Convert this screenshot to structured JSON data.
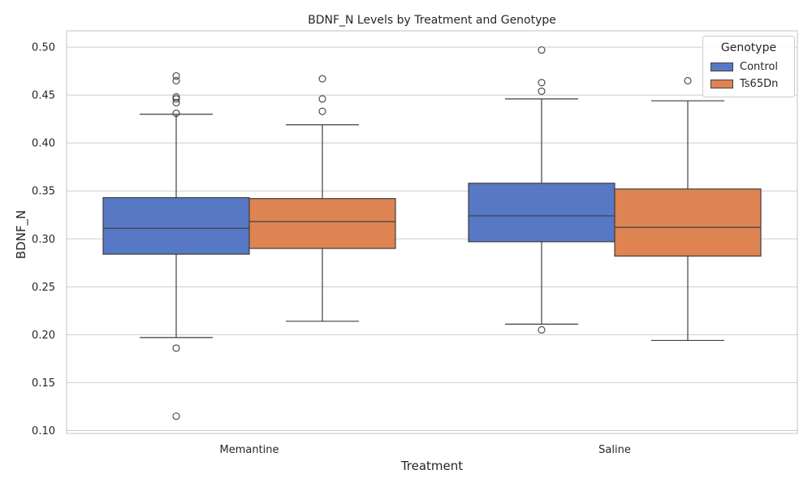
{
  "chart_data": {
    "type": "box",
    "title": "BDNF_N Levels by Treatment and Genotype",
    "xlabel": "Treatment",
    "ylabel": "BDNF_N",
    "categories": [
      "Memantine",
      "Saline"
    ],
    "ylim": [
      0.097,
      0.517
    ],
    "yticks": [
      "0.10",
      "0.15",
      "0.20",
      "0.25",
      "0.30",
      "0.35",
      "0.40",
      "0.45",
      "0.50"
    ],
    "grid": true,
    "legend": {
      "title": "Genotype",
      "placement": "top-right"
    },
    "series": [
      {
        "name": "Control",
        "color": "#5778c4",
        "boxes": [
          {
            "category": "Memantine",
            "whisker_low": 0.197,
            "q1": 0.284,
            "median": 0.311,
            "q3": 0.343,
            "whisker_high": 0.43,
            "outliers": [
              0.47,
              0.465,
              0.448,
              0.446,
              0.442,
              0.431,
              0.186,
              0.115
            ]
          },
          {
            "category": "Saline",
            "whisker_low": 0.211,
            "q1": 0.297,
            "median": 0.324,
            "q3": 0.358,
            "whisker_high": 0.446,
            "outliers": [
              0.497,
              0.463,
              0.454,
              0.205
            ]
          }
        ]
      },
      {
        "name": "Ts65Dn",
        "color": "#dd8452",
        "boxes": [
          {
            "category": "Memantine",
            "whisker_low": 0.214,
            "q1": 0.29,
            "median": 0.318,
            "q3": 0.342,
            "whisker_high": 0.419,
            "outliers": [
              0.467,
              0.446,
              0.433
            ]
          },
          {
            "category": "Saline",
            "whisker_low": 0.194,
            "q1": 0.282,
            "median": 0.312,
            "q3": 0.352,
            "whisker_high": 0.444,
            "outliers": [
              0.465
            ]
          }
        ]
      }
    ]
  }
}
